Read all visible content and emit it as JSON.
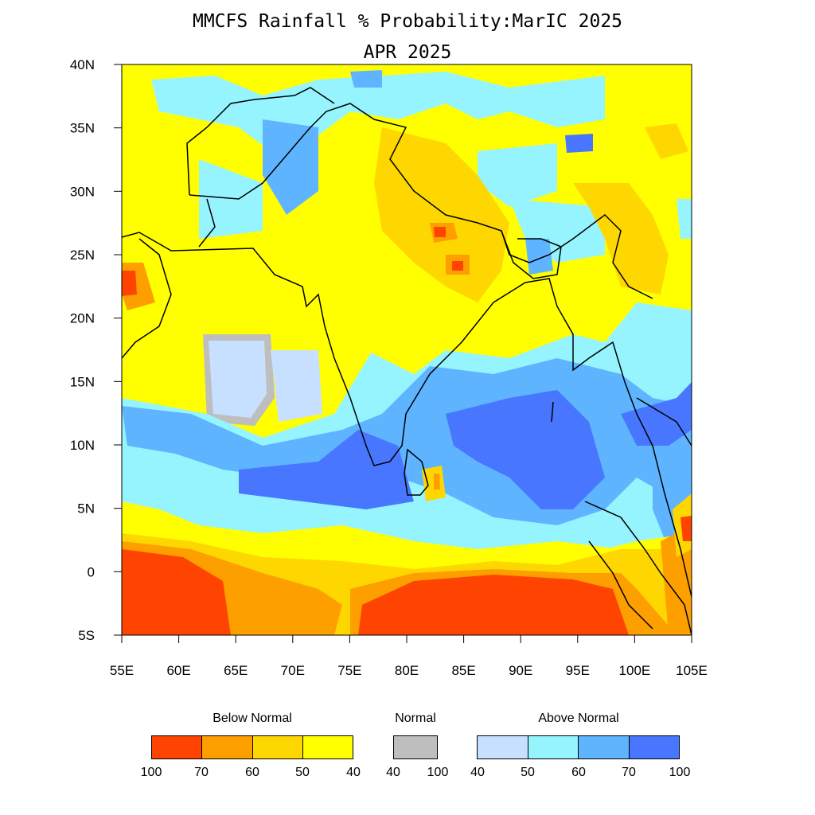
{
  "title": "MMCFS Rainfall % Probability:MarIC 2025",
  "subtitle": "APR 2025",
  "map": {
    "lon_range": [
      55,
      105
    ],
    "lat_range": [
      -5,
      40
    ],
    "lon_ticks": [
      "55E",
      "60E",
      "65E",
      "70E",
      "75E",
      "80E",
      "85E",
      "90E",
      "95E",
      "100E",
      "105E"
    ],
    "lat_ticks": [
      "40N",
      "35N",
      "30N",
      "25N",
      "20N",
      "15N",
      "10N",
      "5N",
      "0",
      "5S"
    ]
  },
  "legend": {
    "below": {
      "label": "Below Normal",
      "colors": [
        "#fe4400",
        "#fe9f00",
        "#fed700",
        "#ffff00"
      ],
      "ticks": [
        "100",
        "70",
        "60",
        "50",
        "40"
      ]
    },
    "normal": {
      "label": "Normal",
      "color": "#bebebe",
      "ticks": [
        "40",
        "100"
      ]
    },
    "above": {
      "label": "Above Normal",
      "colors": [
        "#c8e0ff",
        "#96f4ff",
        "#5eb4ff",
        "#4876ff"
      ],
      "ticks": [
        "40",
        "50",
        "60",
        "70",
        "100"
      ]
    }
  }
}
